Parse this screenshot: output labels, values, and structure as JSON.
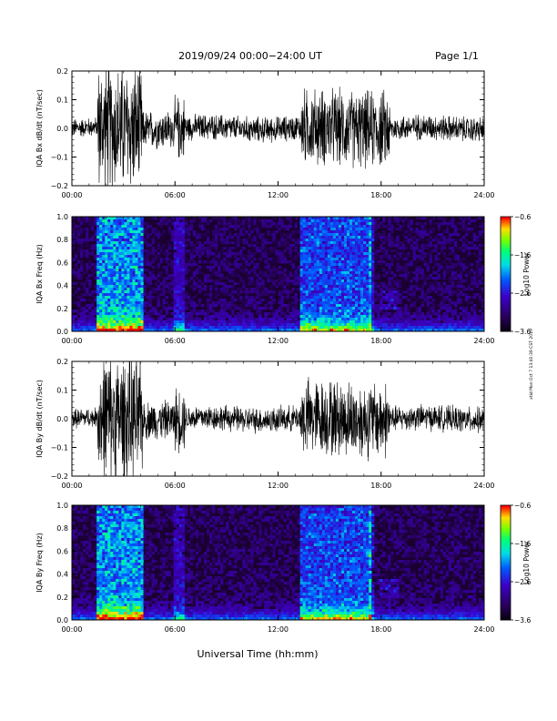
{
  "header": {
    "date_range": "2019/09/24  00:00−24:00 UT",
    "page": "Page 1/1"
  },
  "side_note": "xtid Mon Oct 7 13:40:39 CST 2019",
  "footer": {
    "xlabel": "Universal Time (hh:mm)"
  },
  "colors": {
    "wave": "#000000",
    "background_spec": "#1a0030"
  },
  "chart_data": [
    {
      "type": "line",
      "ylabel": "IQA Bx dB/dt (nT/sec)",
      "x_ticks": [
        "00:00",
        "06:00",
        "12:00",
        "18:00",
        "24:00"
      ],
      "y_ticks": [
        "0.2",
        "0.1",
        "0.0",
        "−0.1",
        "−0.2"
      ],
      "xlim_hours": [
        0,
        24
      ],
      "ylim": [
        -0.2,
        0.2
      ],
      "activity": [
        {
          "from_h": 0.0,
          "to_h": 1.5,
          "amp": 0.03
        },
        {
          "from_h": 1.5,
          "to_h": 4.1,
          "amp": 0.2
        },
        {
          "from_h": 4.1,
          "to_h": 6.0,
          "amp": 0.06
        },
        {
          "from_h": 6.0,
          "to_h": 6.6,
          "amp": 0.1
        },
        {
          "from_h": 6.6,
          "to_h": 13.3,
          "amp": 0.04
        },
        {
          "from_h": 13.3,
          "to_h": 18.5,
          "amp": 0.12
        },
        {
          "from_h": 18.5,
          "to_h": 24.0,
          "amp": 0.04
        }
      ]
    },
    {
      "type": "heatmap",
      "ylabel": "IQA Bx Freq (Hz)",
      "x_ticks": [
        "00:00",
        "06:00",
        "12:00",
        "18:00",
        "24:00"
      ],
      "y_ticks": [
        "1.0",
        "0.8",
        "0.6",
        "0.4",
        "0.2",
        "0.0"
      ],
      "xlim_hours": [
        0,
        24
      ],
      "ylim": [
        0,
        1
      ],
      "colorbar": {
        "ticks": [
          "−0.6",
          "−1.6",
          "−2.6",
          "−3.6"
        ],
        "range": [
          -3.6,
          -0.6
        ],
        "label": "Log10 Power"
      }
    },
    {
      "type": "line",
      "ylabel": "IQA By dB/dt (nT/sec)",
      "x_ticks": [
        "00:00",
        "06:00",
        "12:00",
        "18:00",
        "24:00"
      ],
      "y_ticks": [
        "0.2",
        "0.1",
        "0.0",
        "−0.1",
        "−0.2"
      ],
      "xlim_hours": [
        0,
        24
      ],
      "ylim": [
        -0.2,
        0.2
      ],
      "activity": [
        {
          "from_h": 0.0,
          "to_h": 1.5,
          "amp": 0.03
        },
        {
          "from_h": 1.5,
          "to_h": 4.1,
          "amp": 0.2
        },
        {
          "from_h": 4.1,
          "to_h": 6.0,
          "amp": 0.06
        },
        {
          "from_h": 6.0,
          "to_h": 6.6,
          "amp": 0.1
        },
        {
          "from_h": 6.6,
          "to_h": 13.3,
          "amp": 0.04
        },
        {
          "from_h": 13.3,
          "to_h": 18.5,
          "amp": 0.12
        },
        {
          "from_h": 18.5,
          "to_h": 24.0,
          "amp": 0.04
        }
      ]
    },
    {
      "type": "heatmap",
      "ylabel": "IQA By Freq (Hz)",
      "x_ticks": [
        "00:00",
        "06:00",
        "12:00",
        "18:00",
        "24:00"
      ],
      "y_ticks": [
        "1.0",
        "0.8",
        "0.6",
        "0.4",
        "0.2",
        "0.0"
      ],
      "xlim_hours": [
        0,
        24
      ],
      "ylim": [
        0,
        1
      ],
      "colorbar": {
        "ticks": [
          "−0.6",
          "−1.6",
          "−2.6",
          "−3.6"
        ],
        "range": [
          -3.6,
          -0.6
        ],
        "label": "Log10 Power"
      }
    }
  ]
}
